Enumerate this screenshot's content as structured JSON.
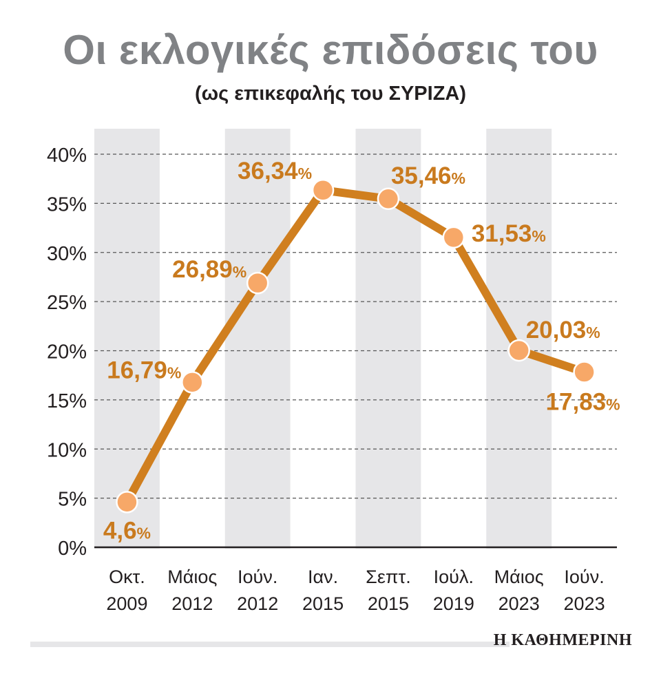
{
  "title": "Οι εκλογικές επιδόσεις του",
  "subtitle": "(ως επικεφαλής του ΣΥΡΙΖΑ)",
  "brand": "Η ΚΑΘΗΜΕΡΙΝΗ",
  "colors": {
    "line": "#d07f1f",
    "marker": "#f7a868",
    "label": "#c97a1e",
    "band": "#e6e6e8",
    "grid": "#555555"
  },
  "chart_data": {
    "type": "line",
    "title": "Οι εκλογικές επιδόσεις του",
    "subtitle": "(ως επικεφαλής του ΣΥΡΙΖΑ)",
    "categories": [
      [
        "Οκτ.",
        "2009"
      ],
      [
        "Μάιος",
        "2012"
      ],
      [
        "Ιούν.",
        "2012"
      ],
      [
        "Ιαν.",
        "2015"
      ],
      [
        "Σεπτ.",
        "2015"
      ],
      [
        "Ιούλ.",
        "2019"
      ],
      [
        "Μάιος",
        "2023"
      ],
      [
        "Ιούν.",
        "2023"
      ]
    ],
    "values": [
      4.6,
      16.79,
      26.89,
      36.34,
      35.46,
      31.53,
      20.03,
      17.83
    ],
    "value_labels": [
      "4,6",
      "16,79",
      "26,89",
      "36,34",
      "35,46",
      "31,53",
      "20,03",
      "17,83"
    ],
    "label_suffix": "%",
    "ylim": [
      0,
      40
    ],
    "yticks": [
      0,
      5,
      10,
      15,
      20,
      25,
      30,
      35,
      40
    ],
    "ytick_labels": [
      "0%",
      "5%",
      "10%",
      "15%",
      "20%",
      "25%",
      "30%",
      "35%",
      "40%"
    ],
    "grid": "dashed horizontal",
    "alternating_bands": true,
    "legend": "none"
  }
}
